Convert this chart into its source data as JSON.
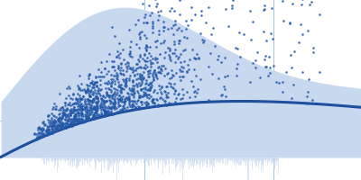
{
  "background_color": "#ffffff",
  "fill_color": "#c8d9ef",
  "fill_alpha": 1.0,
  "line_color": "#1e4f9c",
  "scatter_color": "#2357a8",
  "scatter_alpha": 0.85,
  "scatter_size": 3.5,
  "grid_color": "#a8c4e0",
  "grid_alpha": 1.0,
  "figsize": [
    4.0,
    2.0
  ],
  "dpi": 100,
  "seed": 12
}
